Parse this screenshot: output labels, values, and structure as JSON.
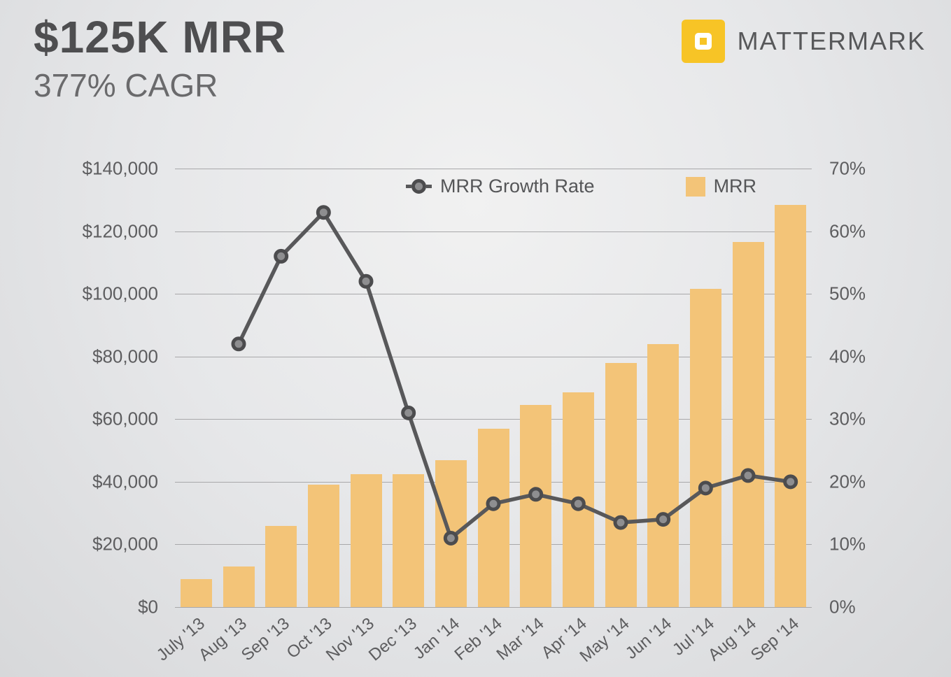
{
  "header": {
    "title": "$125K MRR",
    "subtitle": "377% CAGR",
    "brand": "MATTERMARK"
  },
  "colors": {
    "background": "#E5E6E8",
    "bar": "#F3C478",
    "line": "#58585A",
    "marker_fill": "#8E8E90",
    "brand_yellow": "#F7C426",
    "text": "#59595B",
    "gridline": "#A8A8AA"
  },
  "chart_data": {
    "type": "combo",
    "title": "$125K MRR",
    "subtitle": "377% CAGR",
    "grid": "horizontal",
    "legend_position": "top-center",
    "categories": [
      "July '13",
      "Aug '13",
      "Sep '13",
      "Oct '13",
      "Nov '13",
      "Dec '13",
      "Jan '14",
      "Feb '14",
      "Mar '14",
      "Apr '14",
      "May '14",
      "Jun '14",
      "Jul '14",
      "Aug '14",
      "Sep '14"
    ],
    "series": [
      {
        "name": "MRR",
        "type": "bar",
        "axis": "left",
        "color": "#F3C478",
        "values": [
          9000,
          13000,
          26000,
          39000,
          42500,
          42500,
          47000,
          57000,
          64500,
          68500,
          78000,
          84000,
          101500,
          116500,
          128500
        ]
      },
      {
        "name": "MRR Growth Rate",
        "type": "line",
        "axis": "right",
        "color": "#58585A",
        "values": [
          null,
          42,
          56,
          63,
          52,
          31,
          11,
          16.5,
          18,
          16.5,
          13.5,
          14,
          19,
          21,
          20
        ]
      }
    ],
    "left_axis": {
      "min": 0,
      "max": 140000,
      "unit": "$",
      "ticks": [
        "$140,000",
        "$120,000",
        "$100,000",
        "$80,000",
        "$60,000",
        "$40,000",
        "$20,000",
        "$0"
      ]
    },
    "right_axis": {
      "min": 0,
      "max": 70,
      "unit": "%",
      "ticks": [
        "70%",
        "60%",
        "50%",
        "40%",
        "30%",
        "20%",
        "10%",
        "0%"
      ]
    }
  }
}
